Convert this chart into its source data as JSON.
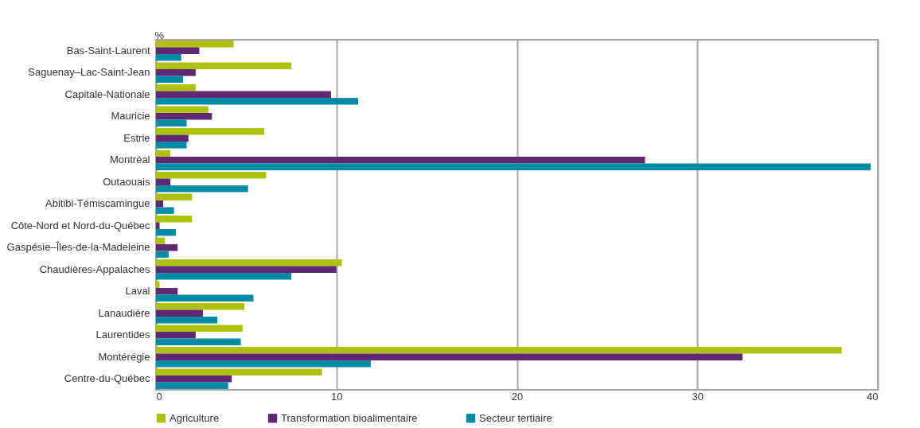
{
  "chart_data": {
    "type": "bar",
    "orientation": "horizontal",
    "xlabel": "%",
    "categories": [
      "Bas-Saint-Laurent",
      "Saguenay–Lac-Saint-Jean",
      "Capitale-Nationale",
      "Mauricie",
      "Estrie",
      "Montréal",
      "Outaouais",
      "Abitibi-Témiscamingue",
      "Côte-Nord et Nord-du-Québec",
      "Gaspésie–Îles-de-la-Madeleine",
      "Chaudières-Appalaches",
      "Laval",
      "Lanaudière",
      "Laurentides",
      "Montérégie",
      "Centre-du-Québec"
    ],
    "series": [
      {
        "name": "Agriculture",
        "color": "#afc011",
        "values": [
          4.3,
          7.5,
          2.2,
          2.9,
          6.0,
          0.8,
          6.1,
          2.0,
          2.0,
          0.5,
          10.3,
          0.2,
          4.9,
          4.8,
          38.0,
          9.2
        ]
      },
      {
        "name": "Transformation bioalimentaire",
        "color": "#5e2872",
        "values": [
          2.4,
          2.2,
          9.7,
          3.1,
          1.8,
          27.1,
          0.8,
          0.4,
          0.2,
          1.2,
          10.0,
          1.2,
          2.6,
          2.2,
          32.5,
          4.2
        ]
      },
      {
        "name": "Secteur tertiaire",
        "color": "#008ba5",
        "values": [
          1.4,
          1.5,
          11.2,
          1.7,
          1.7,
          39.6,
          5.1,
          1.0,
          1.1,
          0.7,
          7.5,
          5.4,
          3.4,
          4.7,
          11.9,
          4.0
        ]
      }
    ],
    "xlim": [
      0,
      40
    ],
    "xticks": [
      0,
      10,
      20,
      30,
      40
    ],
    "grid": "x",
    "legend": "bottom"
  }
}
